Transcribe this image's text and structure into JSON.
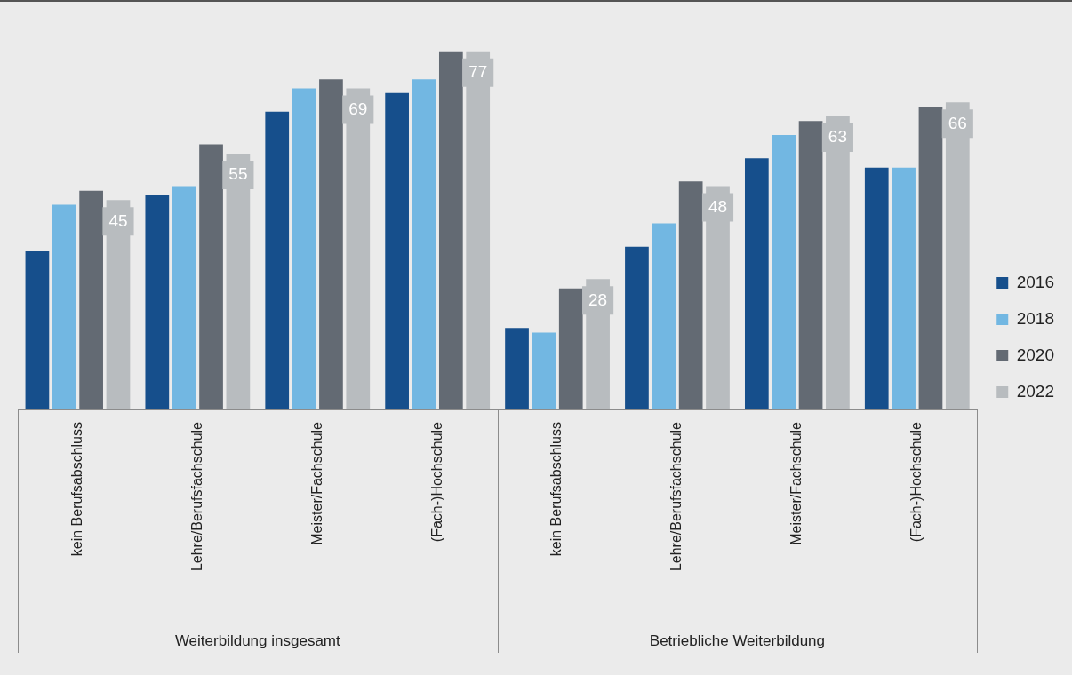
{
  "chart_data": {
    "type": "bar",
    "categories": [
      "kein Berufsabschluss",
      "Lehre/Berufsfachschule",
      "Meister/Fachschule",
      "(Fach-)Hochschule",
      "kein Berufsabschluss",
      "Lehre/Berufsfachschule",
      "Meister/Fachschule",
      "(Fach-)Hochschule"
    ],
    "series": [
      {
        "name": "2016",
        "color": "#164f8c",
        "values": [
          34,
          46,
          64,
          68,
          17.5,
          35,
          54,
          52
        ]
      },
      {
        "name": "2018",
        "color": "#72b7e2",
        "values": [
          44,
          48,
          69,
          71,
          16.5,
          40,
          59,
          52
        ]
      },
      {
        "name": "2020",
        "color": "#636a73",
        "values": [
          47,
          57,
          71,
          77,
          26,
          49,
          62,
          65
        ]
      },
      {
        "name": "2022",
        "color": "#b8bcbf",
        "values": [
          45,
          55,
          69,
          77,
          28,
          48,
          63,
          66
        ],
        "value_labels": [
          "45",
          "55",
          "69",
          "77",
          "28",
          "48",
          "63",
          "66"
        ]
      }
    ],
    "annotations": [
      "Weiterbildung insgesamt",
      "Betriebliche Weiterbildung"
    ],
    "legend": "right",
    "grid": false
  }
}
